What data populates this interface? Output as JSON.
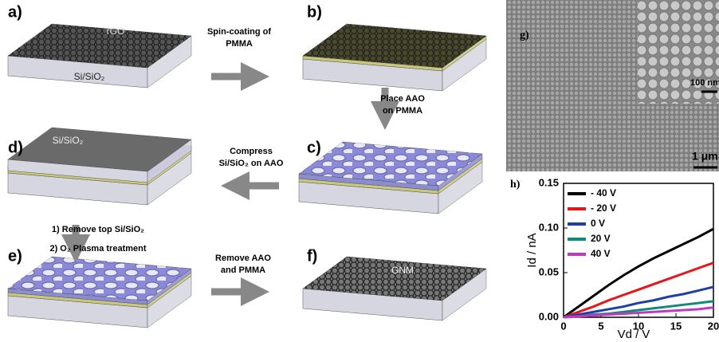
{
  "panels": [
    {
      "label": "a)",
      "layers": [
        "rGO",
        "Si/SiO₂"
      ]
    },
    {
      "label": "b)",
      "layers": []
    },
    {
      "label": "c)",
      "layers": []
    },
    {
      "label": "d)",
      "layers": [
        "Si/SiO₂"
      ]
    },
    {
      "label": "e)",
      "layers": []
    },
    {
      "label": "f)",
      "layers": [
        "GNM"
      ]
    }
  ],
  "steps": [
    [
      "Spin-coating of",
      "PMMA"
    ],
    [
      "Place AAO",
      "on PMMA"
    ],
    [
      "Compress",
      "Si/SiO₂ on AAO"
    ],
    [
      "1) Remove top Si/SiO₂",
      "2) O₂ Plasma treatment"
    ],
    [
      "Remove AAO",
      "and PMMA"
    ]
  ],
  "image": {
    "label": "g)",
    "inset_scale": "100 nm",
    "scale": "1 μm"
  },
  "chart_data": {
    "type": "line",
    "label": "h)",
    "x_label": "Vd / V",
    "y_label": "Id / nA",
    "x": [
      0,
      2,
      4,
      6,
      8,
      10,
      12,
      14,
      16,
      18,
      20
    ],
    "series": [
      {
        "name": "- 40 V",
        "color": "#000000",
        "values": [
          0,
          0.012,
          0.024,
          0.036,
          0.047,
          0.057,
          0.066,
          0.074,
          0.082,
          0.09,
          0.099
        ]
      },
      {
        "name": "- 20 V",
        "color": "#e8141b",
        "values": [
          0,
          0.006,
          0.012,
          0.019,
          0.025,
          0.031,
          0.037,
          0.043,
          0.049,
          0.055,
          0.061
        ]
      },
      {
        "name": "0  V",
        "color": "#1f3fa8",
        "values": [
          0,
          0.003,
          0.006,
          0.009,
          0.012,
          0.016,
          0.019,
          0.023,
          0.026,
          0.03,
          0.034
        ]
      },
      {
        "name": "20 V",
        "color": "#128a7a",
        "values": [
          0,
          0.001,
          0.003,
          0.004,
          0.006,
          0.008,
          0.01,
          0.012,
          0.014,
          0.016,
          0.018
        ]
      },
      {
        "name": "40 V",
        "color": "#c03ac0",
        "values": [
          0,
          0.001,
          0.002,
          0.003,
          0.004,
          0.005,
          0.006,
          0.007,
          0.008,
          0.009,
          0.011
        ]
      }
    ],
    "xlim": [
      0,
      20
    ],
    "xticks": [
      0,
      5,
      10,
      15,
      20
    ],
    "ylim": [
      0,
      0.15
    ],
    "yticks": [
      {
        "value": 0,
        "label": "0.00"
      },
      0.05,
      {
        "value": 0.1,
        "label": "0.10"
      },
      0.15
    ]
  }
}
